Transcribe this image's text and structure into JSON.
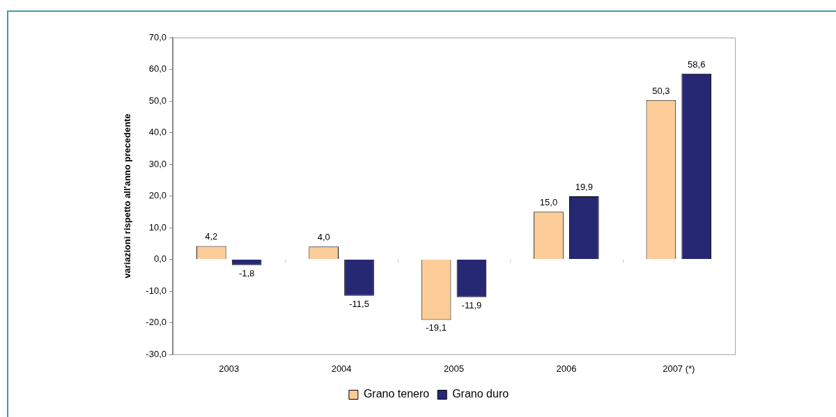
{
  "chart_data": {
    "type": "bar",
    "ylabel": "variazioni rispetto all'anno precedente",
    "categories": [
      "2003",
      "2004",
      "2005",
      "2006",
      "2007 (*)"
    ],
    "series": [
      {
        "name": "Grano tenero",
        "color": "#fccc99",
        "values": [
          4.2,
          4.0,
          -19.1,
          15.0,
          50.3
        ],
        "value_labels": [
          "4,2",
          "4,0",
          "-19,1",
          "15,0",
          "50,3"
        ]
      },
      {
        "name": "Grano duro",
        "color": "#262873",
        "values": [
          -1.8,
          -11.5,
          -11.9,
          19.9,
          58.6
        ],
        "value_labels": [
          "-1,8",
          "-11,5",
          "-11,9",
          "19,9",
          "58,6"
        ]
      }
    ],
    "ylim": [
      -30,
      70
    ],
    "yticks": [
      {
        "value": -30,
        "label": "-30,0"
      },
      {
        "value": -20,
        "label": "-20,0"
      },
      {
        "value": -10,
        "label": "-10,0"
      },
      {
        "value": 0,
        "label": "0,0"
      },
      {
        "value": 10,
        "label": "10,0"
      },
      {
        "value": 20,
        "label": "20,0"
      },
      {
        "value": 30,
        "label": "30,0"
      },
      {
        "value": 40,
        "label": "40,0"
      },
      {
        "value": 50,
        "label": "50,0"
      },
      {
        "value": 60,
        "label": "60,0"
      },
      {
        "value": 70,
        "label": "70,0"
      }
    ],
    "legend": "bottom"
  }
}
